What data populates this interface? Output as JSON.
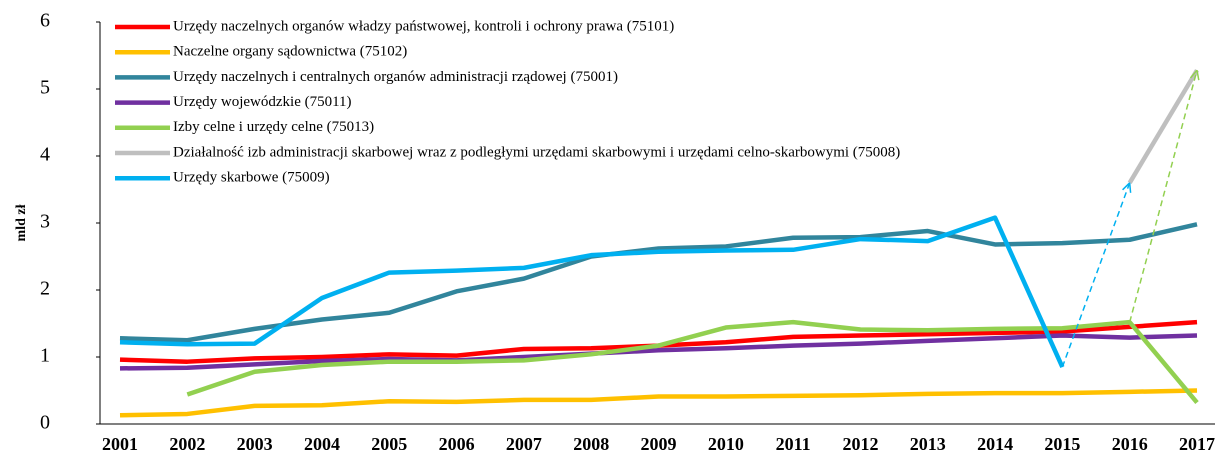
{
  "chart_data": {
    "type": "line",
    "y_label": "mld zł",
    "categories": [
      "2001",
      "2002",
      "2003",
      "2004",
      "2005",
      "2006",
      "2007",
      "2008",
      "2009",
      "2010",
      "2011",
      "2012",
      "2013",
      "2014",
      "2015",
      "2016",
      "2017"
    ],
    "ylim": [
      0,
      6
    ],
    "yticks": [
      0,
      1,
      2,
      3,
      4,
      5,
      6
    ],
    "grid": false,
    "legend": "upper left",
    "series": [
      {
        "name": "Urzędy naczelnych organów władzy państwowej, kontroli i ochrony prawa (75101)",
        "color": "#ff0000",
        "values": [
          0.96,
          0.93,
          0.98,
          1.0,
          1.04,
          1.02,
          1.12,
          1.13,
          1.17,
          1.22,
          1.3,
          1.32,
          1.34,
          1.36,
          1.38,
          1.45,
          1.52
        ]
      },
      {
        "name": "Naczelne organy sądownictwa (75102)",
        "color": "#ffc000",
        "values": [
          0.13,
          0.15,
          0.27,
          0.28,
          0.34,
          0.33,
          0.36,
          0.36,
          0.41,
          0.41,
          0.42,
          0.43,
          0.45,
          0.46,
          0.46,
          0.48,
          0.5
        ]
      },
      {
        "name": "Urzędy naczelnych i centralnych organów administracji rządowej (75001)",
        "color": "#31859c",
        "values": [
          1.28,
          1.25,
          1.42,
          1.56,
          1.66,
          1.98,
          2.17,
          2.5,
          2.62,
          2.65,
          2.78,
          2.79,
          2.88,
          2.68,
          2.7,
          2.75,
          2.98
        ]
      },
      {
        "name": "Urzędy wojewódzkie (75011)",
        "color": "#7030a0",
        "values": [
          0.83,
          0.84,
          0.89,
          0.94,
          0.97,
          0.95,
          1.0,
          1.05,
          1.1,
          1.13,
          1.17,
          1.2,
          1.24,
          1.28,
          1.32,
          1.29,
          1.32
        ]
      },
      {
        "name": "Izby celne i urzędy celne (75013)",
        "color": "#92d050",
        "values": [
          null,
          0.44,
          0.78,
          0.88,
          0.93,
          0.93,
          0.95,
          1.04,
          1.17,
          1.44,
          1.52,
          1.41,
          1.4,
          1.42,
          1.43,
          1.52,
          0.32
        ]
      },
      {
        "name": "Działalność izb administracji skarbowej wraz z podległymi urzędami skarbowymi i urzędami celno-skarbowymi (75008)",
        "color": "#bfbfbf",
        "values": [
          null,
          null,
          null,
          null,
          null,
          null,
          null,
          null,
          null,
          null,
          null,
          null,
          null,
          null,
          null,
          3.6,
          5.28
        ]
      },
      {
        "name": "Urzędy skarbowe (75009)",
        "color": "#00b0f0",
        "values": [
          1.22,
          1.19,
          1.2,
          1.88,
          2.26,
          2.29,
          2.33,
          2.52,
          2.57,
          2.59,
          2.6,
          2.76,
          2.73,
          3.08,
          0.85,
          null,
          null
        ]
      }
    ]
  }
}
